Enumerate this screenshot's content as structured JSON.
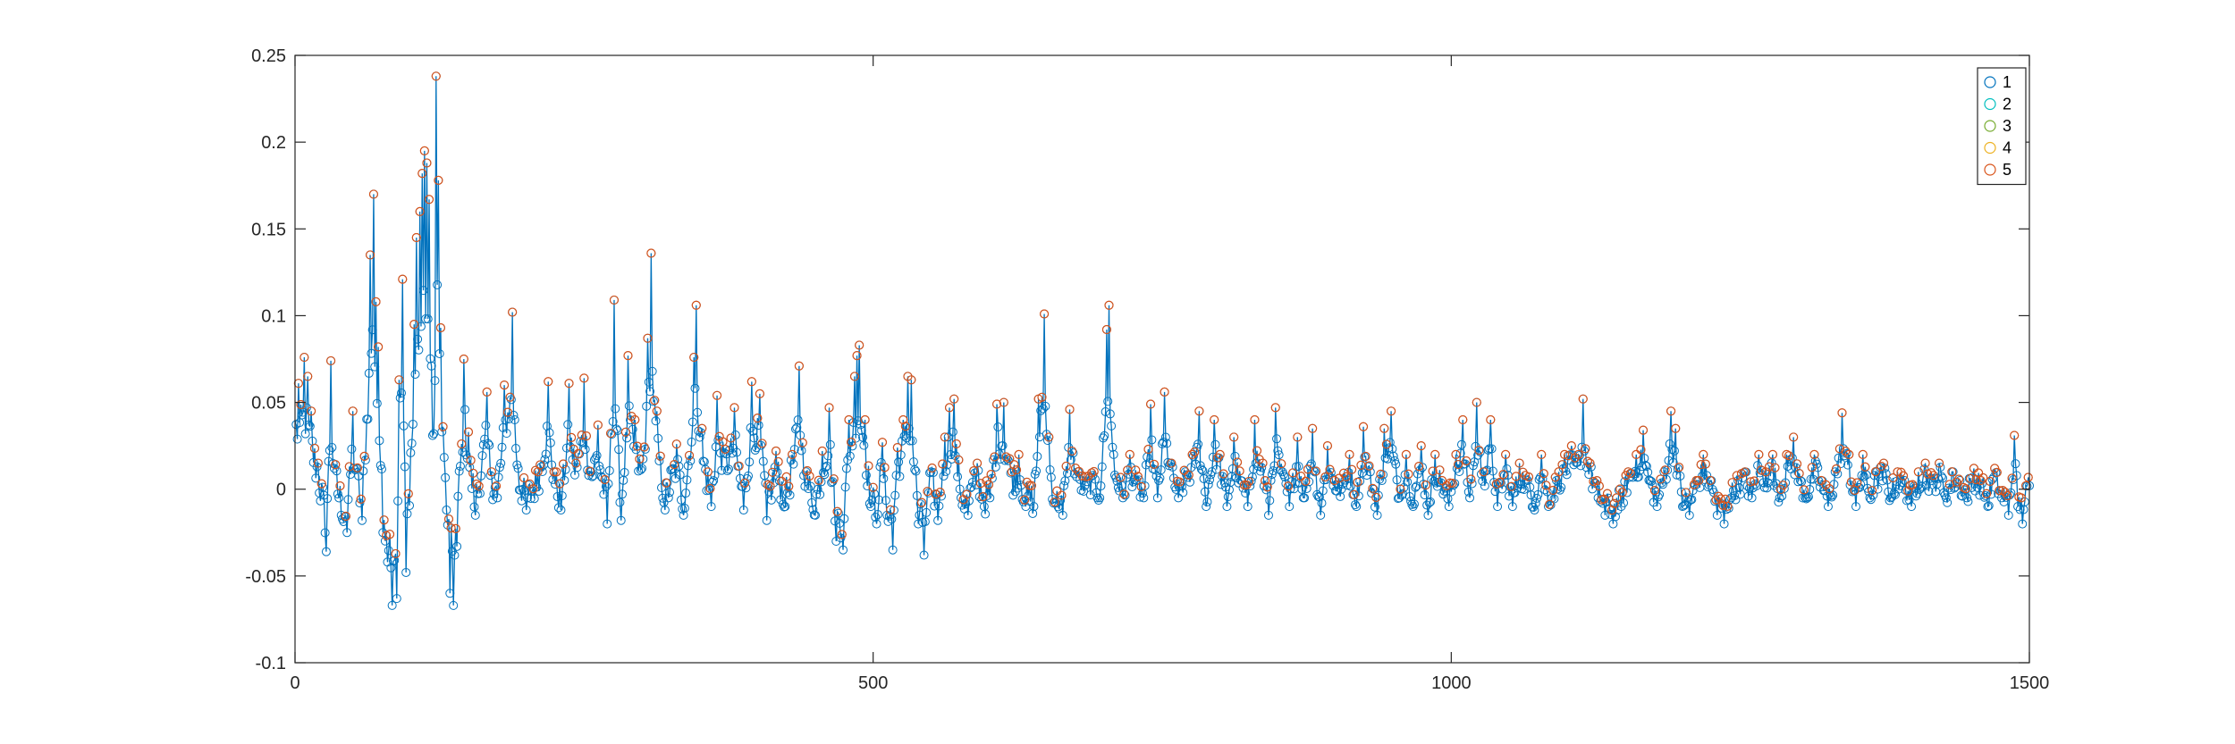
{
  "chart_data": {
    "type": "line",
    "title": "",
    "xlabel": "",
    "ylabel": "",
    "xlim": [
      0,
      1500
    ],
    "ylim": [
      -0.1,
      0.25
    ],
    "xticks": [
      0,
      500,
      1000,
      1500
    ],
    "xtick_labels": [
      "0",
      "500",
      "1000",
      "1500"
    ],
    "yticks": [
      -0.1,
      -0.05,
      0,
      0.05,
      0.1,
      0.15,
      0.2,
      0.25
    ],
    "ytick_labels": [
      "-0.1",
      "-0.05",
      "0",
      "0.05",
      "0.1",
      "0.15",
      "0.2",
      "0.25"
    ],
    "grid": false,
    "box": true,
    "legend": {
      "placement": "top-right",
      "entries": [
        "1",
        "2",
        "3",
        "4",
        "5"
      ]
    },
    "series_colors": [
      "#0072BD",
      "#00BFBF",
      "#77AC30",
      "#EDB120",
      "#D95319"
    ],
    "marker": "open-circle",
    "n_points": 1500,
    "x_step": 1,
    "peaks": [
      {
        "x": 3,
        "y": 0.061
      },
      {
        "x": 8,
        "y": 0.076
      },
      {
        "x": 11,
        "y": 0.065
      },
      {
        "x": 14,
        "y": 0.045
      },
      {
        "x": 20,
        "y": 0.015
      },
      {
        "x": 27,
        "y": -0.036
      },
      {
        "x": 31,
        "y": 0.074
      },
      {
        "x": 34,
        "y": 0.012
      },
      {
        "x": 40,
        "y": -0.015
      },
      {
        "x": 45,
        "y": -0.025
      },
      {
        "x": 50,
        "y": 0.045
      },
      {
        "x": 53,
        "y": 0.012
      },
      {
        "x": 58,
        "y": -0.018
      },
      {
        "x": 65,
        "y": 0.135
      },
      {
        "x": 68,
        "y": 0.17
      },
      {
        "x": 70,
        "y": 0.108
      },
      {
        "x": 72,
        "y": 0.082
      },
      {
        "x": 76,
        "y": -0.025
      },
      {
        "x": 80,
        "y": -0.042
      },
      {
        "x": 84,
        "y": -0.067
      },
      {
        "x": 88,
        "y": -0.063
      },
      {
        "x": 90,
        "y": 0.063
      },
      {
        "x": 93,
        "y": 0.121
      },
      {
        "x": 96,
        "y": -0.048
      },
      {
        "x": 100,
        "y": 0.021
      },
      {
        "x": 103,
        "y": 0.095
      },
      {
        "x": 105,
        "y": 0.145
      },
      {
        "x": 108,
        "y": 0.16
      },
      {
        "x": 110,
        "y": 0.182
      },
      {
        "x": 112,
        "y": 0.195
      },
      {
        "x": 114,
        "y": 0.188
      },
      {
        "x": 116,
        "y": 0.167
      },
      {
        "x": 118,
        "y": 0.071
      },
      {
        "x": 120,
        "y": 0.032
      },
      {
        "x": 122,
        "y": 0.238
      },
      {
        "x": 124,
        "y": 0.178
      },
      {
        "x": 126,
        "y": 0.093
      },
      {
        "x": 128,
        "y": 0.036
      },
      {
        "x": 131,
        "y": -0.012
      },
      {
        "x": 134,
        "y": -0.06
      },
      {
        "x": 137,
        "y": -0.067
      },
      {
        "x": 140,
        "y": -0.033
      },
      {
        "x": 146,
        "y": 0.075
      },
      {
        "x": 150,
        "y": 0.033
      },
      {
        "x": 156,
        "y": -0.015
      },
      {
        "x": 166,
        "y": 0.056
      },
      {
        "x": 170,
        "y": 0.01
      },
      {
        "x": 175,
        "y": -0.005
      },
      {
        "x": 181,
        "y": 0.06
      },
      {
        "x": 188,
        "y": 0.102
      },
      {
        "x": 193,
        "y": 0.012
      },
      {
        "x": 200,
        "y": -0.012
      },
      {
        "x": 210,
        "y": 0.01
      },
      {
        "x": 219,
        "y": 0.062
      },
      {
        "x": 224,
        "y": 0.01
      },
      {
        "x": 230,
        "y": -0.012
      },
      {
        "x": 237,
        "y": 0.061
      },
      {
        "x": 243,
        "y": 0.015
      },
      {
        "x": 250,
        "y": 0.064
      },
      {
        "x": 256,
        "y": 0.01
      },
      {
        "x": 262,
        "y": 0.037
      },
      {
        "x": 270,
        "y": -0.02
      },
      {
        "x": 276,
        "y": 0.109
      },
      {
        "x": 282,
        "y": -0.018
      },
      {
        "x": 288,
        "y": 0.077
      },
      {
        "x": 294,
        "y": 0.04
      },
      {
        "x": 300,
        "y": 0.012
      },
      {
        "x": 305,
        "y": 0.087
      },
      {
        "x": 308,
        "y": 0.136
      },
      {
        "x": 313,
        "y": 0.045
      },
      {
        "x": 320,
        "y": -0.012
      },
      {
        "x": 330,
        "y": 0.026
      },
      {
        "x": 336,
        "y": -0.015
      },
      {
        "x": 345,
        "y": 0.076
      },
      {
        "x": 347,
        "y": 0.106
      },
      {
        "x": 352,
        "y": 0.035
      },
      {
        "x": 360,
        "y": -0.01
      },
      {
        "x": 365,
        "y": 0.054
      },
      {
        "x": 372,
        "y": 0.023
      },
      {
        "x": 380,
        "y": 0.047
      },
      {
        "x": 388,
        "y": -0.012
      },
      {
        "x": 395,
        "y": 0.062
      },
      {
        "x": 402,
        "y": 0.055
      },
      {
        "x": 408,
        "y": -0.018
      },
      {
        "x": 416,
        "y": 0.022
      },
      {
        "x": 424,
        "y": -0.01
      },
      {
        "x": 430,
        "y": 0.02
      },
      {
        "x": 436,
        "y": 0.071
      },
      {
        "x": 442,
        "y": 0.01
      },
      {
        "x": 450,
        "y": -0.015
      },
      {
        "x": 456,
        "y": 0.022
      },
      {
        "x": 462,
        "y": 0.047
      },
      {
        "x": 468,
        "y": -0.03
      },
      {
        "x": 474,
        "y": -0.035
      },
      {
        "x": 479,
        "y": 0.04
      },
      {
        "x": 484,
        "y": 0.065
      },
      {
        "x": 486,
        "y": 0.077
      },
      {
        "x": 488,
        "y": 0.083
      },
      {
        "x": 493,
        "y": 0.04
      },
      {
        "x": 498,
        "y": -0.01
      },
      {
        "x": 503,
        "y": -0.02
      },
      {
        "x": 508,
        "y": 0.027
      },
      {
        "x": 512,
        "y": -0.015
      },
      {
        "x": 517,
        "y": -0.035
      },
      {
        "x": 521,
        "y": 0.024
      },
      {
        "x": 526,
        "y": 0.04
      },
      {
        "x": 530,
        "y": 0.065
      },
      {
        "x": 533,
        "y": 0.063
      },
      {
        "x": 539,
        "y": -0.02
      },
      {
        "x": 544,
        "y": -0.038
      },
      {
        "x": 550,
        "y": 0.01
      },
      {
        "x": 556,
        "y": -0.018
      },
      {
        "x": 562,
        "y": 0.03
      },
      {
        "x": 566,
        "y": 0.047
      },
      {
        "x": 570,
        "y": 0.052
      },
      {
        "x": 576,
        "y": -0.005
      },
      {
        "x": 582,
        "y": -0.015
      },
      {
        "x": 590,
        "y": 0.015
      },
      {
        "x": 596,
        "y": -0.01
      },
      {
        "x": 601,
        "y": -0.005
      },
      {
        "x": 607,
        "y": 0.049
      },
      {
        "x": 613,
        "y": 0.05
      },
      {
        "x": 620,
        "y": 0.01
      },
      {
        "x": 626,
        "y": 0.02
      },
      {
        "x": 632,
        "y": -0.01
      },
      {
        "x": 639,
        "y": -0.01
      },
      {
        "x": 643,
        "y": 0.052
      },
      {
        "x": 648,
        "y": 0.101
      },
      {
        "x": 652,
        "y": 0.03
      },
      {
        "x": 656,
        "y": -0.008
      },
      {
        "x": 664,
        "y": -0.015
      },
      {
        "x": 670,
        "y": 0.046
      },
      {
        "x": 677,
        "y": 0.01
      },
      {
        "x": 683,
        "y": 0.002
      },
      {
        "x": 690,
        "y": 0.008
      },
      {
        "x": 696,
        "y": -0.005
      },
      {
        "x": 702,
        "y": 0.092
      },
      {
        "x": 704,
        "y": 0.106
      },
      {
        "x": 708,
        "y": 0.02
      },
      {
        "x": 716,
        "y": -0.005
      },
      {
        "x": 722,
        "y": 0.02
      },
      {
        "x": 728,
        "y": 0.005
      },
      {
        "x": 734,
        "y": -0.005
      },
      {
        "x": 740,
        "y": 0.049
      },
      {
        "x": 746,
        "y": -0.005
      },
      {
        "x": 752,
        "y": 0.056
      },
      {
        "x": 758,
        "y": 0.015
      },
      {
        "x": 764,
        "y": -0.005
      },
      {
        "x": 770,
        "y": 0.01
      },
      {
        "x": 776,
        "y": 0.02
      },
      {
        "x": 782,
        "y": 0.045
      },
      {
        "x": 788,
        "y": -0.01
      },
      {
        "x": 795,
        "y": 0.04
      },
      {
        "x": 800,
        "y": 0.02
      },
      {
        "x": 806,
        "y": -0.01
      },
      {
        "x": 812,
        "y": 0.03
      },
      {
        "x": 818,
        "y": 0.005
      },
      {
        "x": 824,
        "y": -0.01
      },
      {
        "x": 830,
        "y": 0.04
      },
      {
        "x": 837,
        "y": 0.015
      },
      {
        "x": 842,
        "y": -0.015
      },
      {
        "x": 848,
        "y": 0.047
      },
      {
        "x": 854,
        "y": 0.01
      },
      {
        "x": 860,
        "y": -0.01
      },
      {
        "x": 867,
        "y": 0.03
      },
      {
        "x": 873,
        "y": -0.005
      },
      {
        "x": 880,
        "y": 0.035
      },
      {
        "x": 887,
        "y": -0.015
      },
      {
        "x": 893,
        "y": 0.025
      },
      {
        "x": 899,
        "y": 0.005
      },
      {
        "x": 905,
        "y": 0.0
      },
      {
        "x": 912,
        "y": 0.02
      },
      {
        "x": 918,
        "y": -0.01
      },
      {
        "x": 924,
        "y": 0.036
      },
      {
        "x": 930,
        "y": 0.01
      },
      {
        "x": 936,
        "y": -0.015
      },
      {
        "x": 942,
        "y": 0.035
      },
      {
        "x": 948,
        "y": 0.045
      },
      {
        "x": 955,
        "y": -0.005
      },
      {
        "x": 961,
        "y": 0.02
      },
      {
        "x": 967,
        "y": -0.01
      },
      {
        "x": 974,
        "y": 0.025
      },
      {
        "x": 980,
        "y": -0.015
      },
      {
        "x": 986,
        "y": 0.02
      },
      {
        "x": 992,
        "y": 0.005
      },
      {
        "x": 998,
        "y": -0.01
      },
      {
        "x": 1004,
        "y": 0.02
      },
      {
        "x": 1010,
        "y": 0.04
      },
      {
        "x": 1016,
        "y": -0.005
      },
      {
        "x": 1022,
        "y": 0.05
      },
      {
        "x": 1028,
        "y": 0.01
      },
      {
        "x": 1034,
        "y": 0.04
      },
      {
        "x": 1040,
        "y": -0.01
      },
      {
        "x": 1047,
        "y": 0.02
      },
      {
        "x": 1053,
        "y": -0.01
      },
      {
        "x": 1059,
        "y": 0.015
      },
      {
        "x": 1066,
        "y": 0.005
      },
      {
        "x": 1072,
        "y": -0.012
      },
      {
        "x": 1078,
        "y": 0.02
      },
      {
        "x": 1084,
        "y": -0.01
      },
      {
        "x": 1091,
        "y": 0.005
      },
      {
        "x": 1098,
        "y": 0.02
      },
      {
        "x": 1104,
        "y": 0.025
      },
      {
        "x": 1110,
        "y": 0.02
      },
      {
        "x": 1114,
        "y": 0.052
      },
      {
        "x": 1120,
        "y": 0.015
      },
      {
        "x": 1127,
        "y": -0.005
      },
      {
        "x": 1133,
        "y": -0.015
      },
      {
        "x": 1140,
        "y": -0.02
      },
      {
        "x": 1147,
        "y": -0.01
      },
      {
        "x": 1153,
        "y": 0.01
      },
      {
        "x": 1160,
        "y": 0.02
      },
      {
        "x": 1166,
        "y": 0.034
      },
      {
        "x": 1172,
        "y": 0.005
      },
      {
        "x": 1178,
        "y": -0.01
      },
      {
        "x": 1184,
        "y": 0.01
      },
      {
        "x": 1190,
        "y": 0.045
      },
      {
        "x": 1194,
        "y": 0.035
      },
      {
        "x": 1200,
        "y": -0.01
      },
      {
        "x": 1206,
        "y": -0.015
      },
      {
        "x": 1212,
        "y": 0.005
      },
      {
        "x": 1218,
        "y": 0.02
      },
      {
        "x": 1224,
        "y": 0.005
      },
      {
        "x": 1230,
        "y": -0.015
      },
      {
        "x": 1236,
        "y": -0.02
      },
      {
        "x": 1242,
        "y": -0.005
      },
      {
        "x": 1248,
        "y": 0.005
      },
      {
        "x": 1254,
        "y": 0.01
      },
      {
        "x": 1260,
        "y": -0.005
      },
      {
        "x": 1266,
        "y": 0.02
      },
      {
        "x": 1272,
        "y": 0.01
      },
      {
        "x": 1278,
        "y": 0.02
      },
      {
        "x": 1284,
        "y": -0.005
      },
      {
        "x": 1290,
        "y": 0.02
      },
      {
        "x": 1296,
        "y": 0.03
      },
      {
        "x": 1302,
        "y": 0.005
      },
      {
        "x": 1308,
        "y": -0.005
      },
      {
        "x": 1314,
        "y": 0.02
      },
      {
        "x": 1320,
        "y": 0.005
      },
      {
        "x": 1326,
        "y": -0.01
      },
      {
        "x": 1332,
        "y": 0.01
      },
      {
        "x": 1338,
        "y": 0.044
      },
      {
        "x": 1344,
        "y": 0.02
      },
      {
        "x": 1350,
        "y": -0.01
      },
      {
        "x": 1356,
        "y": 0.02
      },
      {
        "x": 1362,
        "y": -0.005
      },
      {
        "x": 1368,
        "y": 0.01
      },
      {
        "x": 1374,
        "y": 0.015
      },
      {
        "x": 1380,
        "y": -0.005
      },
      {
        "x": 1386,
        "y": 0.01
      },
      {
        "x": 1392,
        "y": 0.005
      },
      {
        "x": 1398,
        "y": -0.01
      },
      {
        "x": 1404,
        "y": 0.01
      },
      {
        "x": 1410,
        "y": 0.015
      },
      {
        "x": 1416,
        "y": 0.005
      },
      {
        "x": 1422,
        "y": 0.015
      },
      {
        "x": 1428,
        "y": -0.005
      },
      {
        "x": 1434,
        "y": 0.01
      },
      {
        "x": 1440,
        "y": 0.005
      },
      {
        "x": 1446,
        "y": -0.005
      },
      {
        "x": 1452,
        "y": 0.012
      },
      {
        "x": 1458,
        "y": 0.005
      },
      {
        "x": 1464,
        "y": -0.01
      },
      {
        "x": 1470,
        "y": 0.012
      },
      {
        "x": 1476,
        "y": -0.005
      },
      {
        "x": 1482,
        "y": -0.015
      },
      {
        "x": 1487,
        "y": 0.031
      },
      {
        "x": 1490,
        "y": -0.01
      },
      {
        "x": 1494,
        "y": -0.02
      },
      {
        "x": 1497,
        "y": 0.002
      },
      {
        "x": 1500,
        "y": 0.002
      }
    ]
  }
}
